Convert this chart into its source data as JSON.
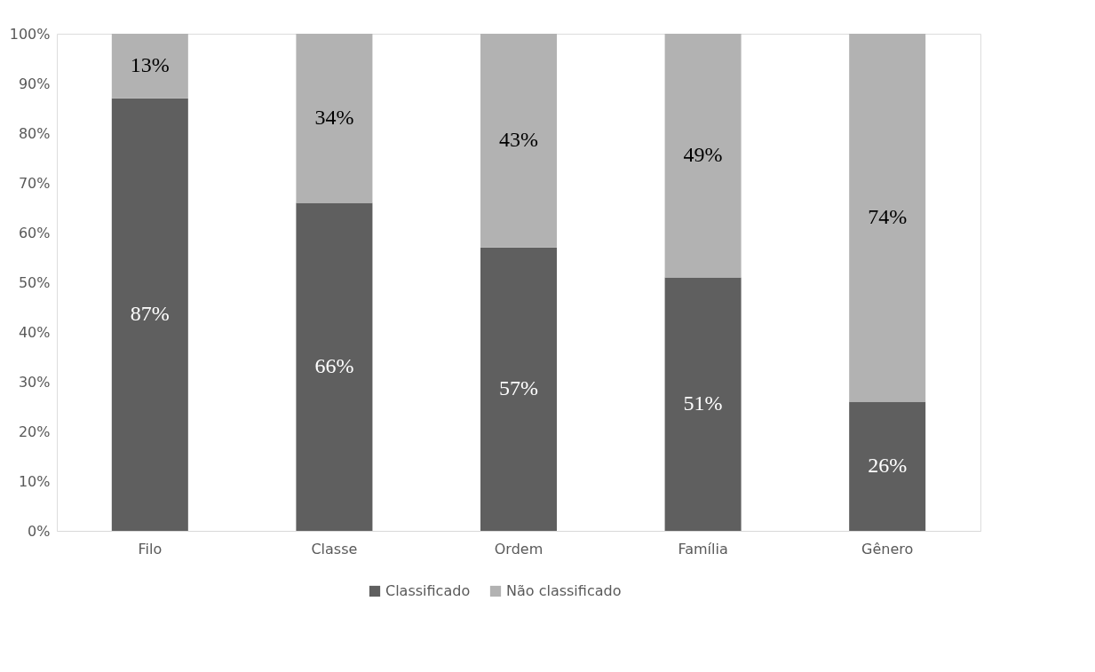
{
  "chart_data": {
    "type": "bar",
    "stacked": true,
    "categories": [
      "Filo",
      "Classe",
      "Ordem",
      "Família",
      "Gênero"
    ],
    "series": [
      {
        "name": "Classificado",
        "color": "#5f5f5f",
        "values": [
          87,
          66,
          57,
          51,
          26
        ],
        "value_labels": [
          "87%",
          "66%",
          "57%",
          "51%",
          "26%"
        ]
      },
      {
        "name": "Não classificado",
        "color": "#b2b2b2",
        "values": [
          13,
          34,
          43,
          49,
          74
        ],
        "value_labels": [
          "13%",
          "34%",
          "43%",
          "49%",
          "74%"
        ]
      }
    ],
    "ylim": [
      0,
      100
    ],
    "yticks": [
      {
        "value": 0,
        "label": "0%"
      },
      {
        "value": 10,
        "label": "10%"
      },
      {
        "value": 20,
        "label": "20%"
      },
      {
        "value": 30,
        "label": "30%"
      },
      {
        "value": 40,
        "label": "40%"
      },
      {
        "value": 50,
        "label": "50%"
      },
      {
        "value": 60,
        "label": "60%"
      },
      {
        "value": 70,
        "label": "70%"
      },
      {
        "value": 80,
        "label": "80%"
      },
      {
        "value": 90,
        "label": "90%"
      },
      {
        "value": 100,
        "label": "100%"
      }
    ],
    "grid": false,
    "legend": "bottom"
  }
}
